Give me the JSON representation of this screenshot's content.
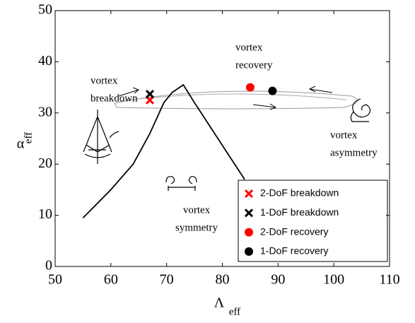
{
  "chart_data": {
    "type": "line",
    "x_label": {
      "symbol": "Λ",
      "subscript": "eff"
    },
    "y_label": {
      "symbol": "α",
      "subscript": "eff"
    },
    "xlim": [
      50,
      110
    ],
    "xticks": [
      50,
      60,
      70,
      80,
      90,
      100,
      110
    ],
    "ylim": [
      0,
      50
    ],
    "yticks": [
      0,
      10,
      20,
      30,
      40,
      50
    ],
    "lines": [
      {
        "color": "#000000",
        "x": [
          55,
          60,
          64,
          67,
          69.5,
          71,
          73,
          75,
          78,
          81,
          84
        ],
        "y": [
          9.5,
          15,
          20,
          26,
          32,
          34,
          35.5,
          32,
          27,
          22,
          17
        ]
      }
    ],
    "series": [
      {
        "name": "2-DoF breakdown",
        "color": "#ff0000",
        "marker": "x",
        "x": [
          67
        ],
        "y": [
          32.5
        ]
      },
      {
        "name": "1-DoF breakdown",
        "color": "#000000",
        "marker": "x",
        "x": [
          67
        ],
        "y": [
          33.7
        ]
      },
      {
        "name": "2-DoF recovery",
        "color": "#ff0000",
        "marker": "o",
        "x": [
          85
        ],
        "y": [
          35
        ]
      },
      {
        "name": "1-DoF recovery",
        "color": "#000000",
        "marker": "o",
        "x": [
          89
        ],
        "y": [
          34.3
        ]
      }
    ],
    "annotations": [
      {
        "lines": [
          "vortex",
          "breakdown"
        ]
      },
      {
        "lines": [
          "vortex",
          "recovery"
        ]
      },
      {
        "lines": [
          "vortex",
          "asymmetry"
        ]
      },
      {
        "lines": [
          "vortex",
          "symmetry"
        ]
      }
    ],
    "legend": "lower right"
  }
}
